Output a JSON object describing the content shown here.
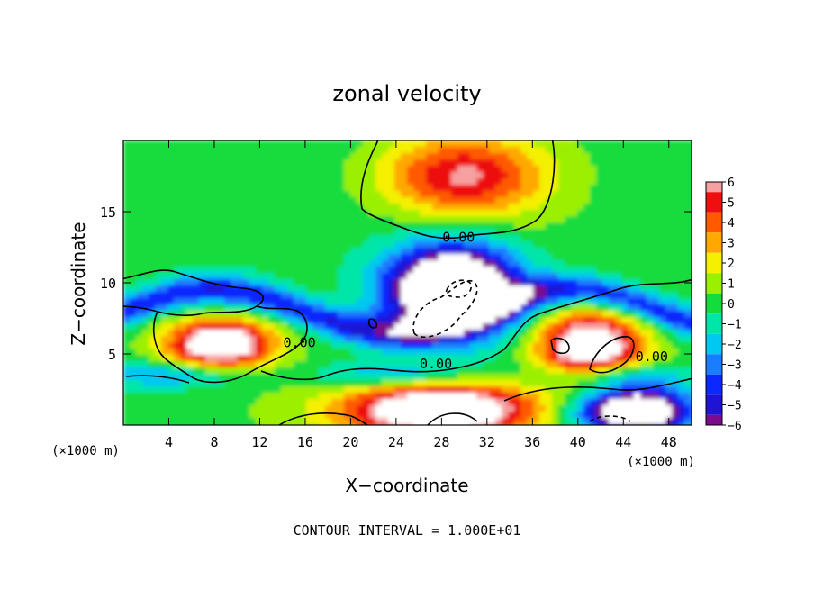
{
  "chart_data": {
    "type": "heatmap",
    "title": "zonal velocity",
    "xlabel": "X−coordinate",
    "ylabel": "Z−coordinate",
    "x_unit_left": "(×1000 m)",
    "x_unit_right": "(×1000 m)",
    "xlim": [
      0,
      50
    ],
    "ylim": [
      0,
      20
    ],
    "x_ticks": [
      4,
      8,
      12,
      16,
      20,
      24,
      28,
      32,
      36,
      40,
      44,
      48
    ],
    "y_ticks": [
      5,
      10,
      15
    ],
    "colorbar": {
      "levels": [
        -6,
        -5,
        -4,
        -3,
        -2,
        -1,
        0,
        1,
        2,
        3,
        4,
        5,
        6
      ],
      "labels": [
        "6",
        "5",
        "4",
        "3",
        "2",
        "1",
        "0",
        "−1",
        "−2",
        "−3",
        "−4",
        "−5",
        "−6"
      ]
    },
    "contour_labels": [
      {
        "text": "0.00",
        "x": 29.5,
        "z": 13.2
      },
      {
        "text": "0.00",
        "x": 15.5,
        "z": 5.8
      },
      {
        "text": "0.00",
        "x": 27.5,
        "z": 4.3
      },
      {
        "text": "0.00",
        "x": 46.5,
        "z": 4.8
      }
    ],
    "features": [
      {
        "kind": "max",
        "x": 30,
        "z": 17.5,
        "amp": 5.5,
        "sx": 5,
        "sz": 2
      },
      {
        "kind": "min",
        "x": 29,
        "z": 9.5,
        "amp": -12,
        "sx": 4,
        "sz": 2.2
      },
      {
        "kind": "max",
        "x": 8.5,
        "z": 5.7,
        "amp": 9,
        "sx": 3.2,
        "sz": 1.2
      },
      {
        "kind": "max",
        "x": 41,
        "z": 5.5,
        "amp": 9,
        "sx": 3.2,
        "sz": 1.7
      },
      {
        "kind": "max",
        "x": 28,
        "z": 1,
        "amp": 10,
        "sx": 6,
        "sz": 1.4
      },
      {
        "kind": "min",
        "x": 45,
        "z": 1,
        "amp": -10,
        "sx": 3.5,
        "sz": 1.2
      }
    ],
    "annotation": "CONTOUR INTERVAL = 1.000E+01"
  }
}
